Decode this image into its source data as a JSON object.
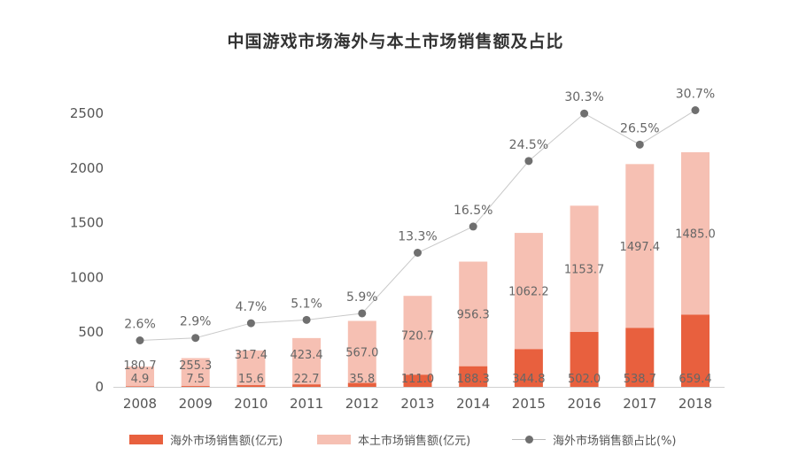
{
  "chart_data": {
    "type": "bar",
    "title": "中国游戏市场海外与本土市场销售额及占比",
    "categories": [
      "2008",
      "2009",
      "2010",
      "2011",
      "2012",
      "2013",
      "2014",
      "2015",
      "2016",
      "2017",
      "2018"
    ],
    "series": [
      {
        "name": "海外市场销售额(亿元)",
        "color": "#e8603e",
        "values": [
          4.9,
          7.5,
          15.6,
          22.7,
          35.8,
          111.0,
          188.3,
          344.8,
          502.0,
          538.7,
          659.4
        ],
        "labels": [
          "4.9",
          "7.5",
          "15.6",
          "22.7",
          "35.8",
          "111.0",
          "188.3",
          "344.8",
          "502.0",
          "538.7",
          "659.4"
        ]
      },
      {
        "name": "本土市场销售额(亿元)",
        "color": "#f6c0b3",
        "values": [
          180.7,
          255.3,
          317.4,
          423.4,
          567.0,
          720.7,
          956.3,
          1062.2,
          1153.7,
          1497.4,
          1485.0
        ],
        "labels": [
          "180.7",
          "255.3",
          "317.4",
          "423.4",
          "567.0",
          "720.7",
          "956.3",
          "1062.2",
          "1153.7",
          "1497.4",
          "1485.0"
        ]
      },
      {
        "name": "海外市场销售额占比(%)",
        "type": "line",
        "color": "#6f6f6f",
        "values": [
          2.6,
          2.9,
          4.7,
          5.1,
          5.9,
          13.3,
          16.5,
          24.5,
          30.3,
          26.5,
          30.7
        ],
        "labels": [
          "2.6%",
          "2.9%",
          "4.7%",
          "5.1%",
          "5.9%",
          "13.3%",
          "16.5%",
          "24.5%",
          "30.3%",
          "26.5%",
          "30.7%"
        ]
      }
    ],
    "yticks": [
      "0",
      "500",
      "1000",
      "1500",
      "2000",
      "2500"
    ],
    "ylim": [
      0,
      2500
    ],
    "legend": [
      "海外市场销售额(亿元)",
      "本土市场销售额(亿元)",
      "海外市场销售额占比(%)"
    ]
  }
}
